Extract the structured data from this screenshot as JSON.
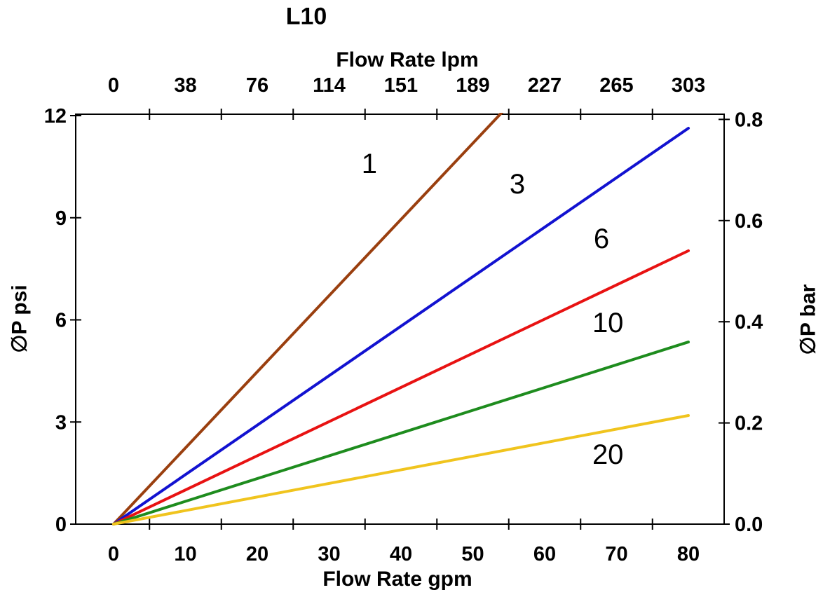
{
  "chart_data": {
    "type": "line",
    "title": "L10",
    "xlabel": "Flow Rate gpm",
    "x2label": "Flow Rate lpm",
    "ylabel": "∅P psi",
    "y2label": "∅P bar",
    "xlim_gpm": [
      0,
      80
    ],
    "x2lim_lpm": [
      0,
      303
    ],
    "ylim_psi": [
      0,
      12
    ],
    "y2lim_bar": [
      0,
      0.8
    ],
    "grid": false,
    "legend_position": "labels-on-lines",
    "x_axis_bottom": {
      "tick_values_gpm": [
        0,
        10,
        20,
        30,
        40,
        50,
        60,
        70,
        80
      ],
      "tick_labels": [
        "0",
        "10",
        "20",
        "30",
        "40",
        "50",
        "60",
        "70",
        "80"
      ],
      "minor_tick_values_gpm": [
        5,
        15,
        25,
        35,
        45,
        55,
        65,
        75
      ]
    },
    "x_axis_top": {
      "tick_values_gpm": [
        0,
        10,
        20,
        30,
        40,
        50,
        60,
        70,
        80
      ],
      "tick_labels": [
        "0",
        "38",
        "76",
        "114",
        "151",
        "189",
        "227",
        "265",
        "303"
      ],
      "minor_tick_values_gpm": [
        5,
        15,
        25,
        35,
        45,
        55,
        65,
        75
      ]
    },
    "y_axis_left": {
      "tick_values_psi": [
        0,
        3,
        6,
        9,
        12
      ],
      "tick_labels": [
        "0",
        "3",
        "6",
        "9",
        "12"
      ]
    },
    "y_axis_right": {
      "tick_values_bar": [
        0,
        0.2,
        0.4,
        0.6,
        0.8
      ],
      "tick_labels": [
        "0.0",
        "0.2",
        "0.4",
        "0.6",
        "0.8"
      ]
    },
    "series": [
      {
        "label": "1",
        "color": "#9a3f0f",
        "x_gpm": [
          0,
          80
        ],
        "y_psi": [
          0,
          17.9
        ],
        "label_pos": {
          "x_gpm": 35.6,
          "y_psi": 10.6
        }
      },
      {
        "label": "3",
        "color": "#1212d0",
        "x_gpm": [
          0,
          80
        ],
        "y_psi": [
          0,
          11.63
        ],
        "label_pos": {
          "x_gpm": 56.2,
          "y_psi": 10.0
        }
      },
      {
        "label": "6",
        "color": "#e81212",
        "x_gpm": [
          0,
          80
        ],
        "y_psi": [
          0,
          8.03
        ],
        "label_pos": {
          "x_gpm": 67.9,
          "y_psi": 8.4
        }
      },
      {
        "label": "10",
        "color": "#1e8c1e",
        "x_gpm": [
          0,
          80
        ],
        "y_psi": [
          0,
          5.35
        ],
        "label_pos": {
          "x_gpm": 68.8,
          "y_psi": 5.93
        }
      },
      {
        "label": "20",
        "color": "#f0c41e",
        "x_gpm": [
          0,
          80
        ],
        "y_psi": [
          0,
          3.19
        ],
        "label_pos": {
          "x_gpm": 68.8,
          "y_psi": 2.06
        }
      }
    ],
    "colors": {
      "axis": "#000000",
      "text": "#000000",
      "background": "#ffffff"
    }
  }
}
